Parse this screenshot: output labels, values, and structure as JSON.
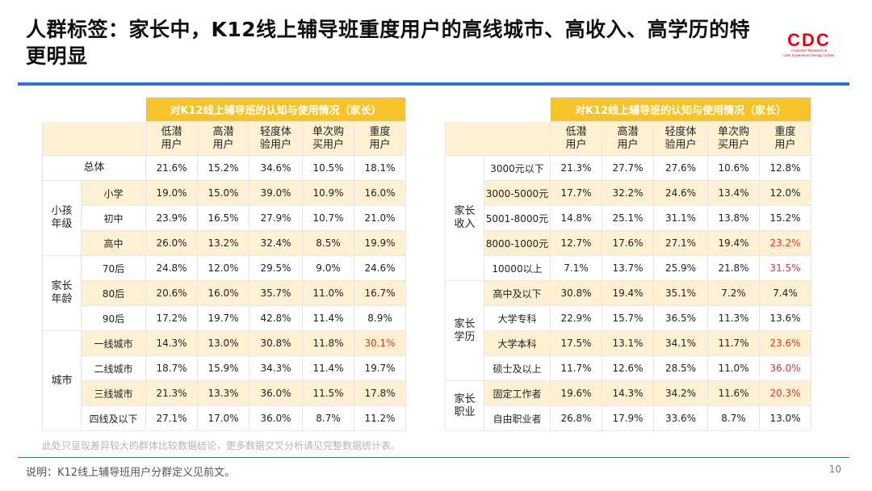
{
  "title": "人群标签：家长中，K12线上辅导班重度用户的高线城市、高收入、高学历的特更明显",
  "logo": {
    "mark": "CDC",
    "sub1": "Customer Research &",
    "sub2": "User Experience Design Center"
  },
  "colors": {
    "accent_blue": "#2f6fd6",
    "header_gold": "#f6c32a",
    "stripe": "#fdf1d2",
    "highlight_red": "#e0342c"
  },
  "columns": [
    "低潜\n用户",
    "高潜\n用户",
    "轻度体\n验用户",
    "单次购\n买用户",
    "重度\n用户"
  ],
  "left_table": {
    "caption": "对K12线上辅导班的认知与使用情况（家长）",
    "total": {
      "label": "总体",
      "values": [
        "21.6%",
        "15.2%",
        "34.6%",
        "10.5%",
        "18.1%"
      ]
    },
    "groups": [
      {
        "label": "小孩\n年级",
        "rows": [
          {
            "label": "小学",
            "values": [
              "19.0%",
              "15.0%",
              "39.0%",
              "10.9%",
              "16.0%"
            ]
          },
          {
            "label": "初中",
            "values": [
              "23.9%",
              "16.5%",
              "27.9%",
              "10.7%",
              "21.0%"
            ]
          },
          {
            "label": "高中",
            "values": [
              "26.0%",
              "13.2%",
              "32.4%",
              "8.5%",
              "19.9%"
            ]
          }
        ]
      },
      {
        "label": "家长\n年龄",
        "rows": [
          {
            "label": "70后",
            "values": [
              "24.8%",
              "12.0%",
              "29.5%",
              "9.0%",
              "24.6%"
            ]
          },
          {
            "label": "80后",
            "values": [
              "20.6%",
              "16.0%",
              "35.7%",
              "11.0%",
              "16.7%"
            ]
          },
          {
            "label": "90后",
            "values": [
              "17.2%",
              "19.7%",
              "42.8%",
              "11.4%",
              "8.9%"
            ]
          }
        ]
      },
      {
        "label": "城市",
        "rows": [
          {
            "label": "一线城市",
            "values": [
              "14.3%",
              "13.0%",
              "30.8%",
              "11.8%",
              "30.1%"
            ],
            "red": [
              4
            ]
          },
          {
            "label": "二线城市",
            "values": [
              "18.7%",
              "15.9%",
              "34.3%",
              "11.4%",
              "19.7%"
            ]
          },
          {
            "label": "三线城市",
            "values": [
              "21.3%",
              "13.3%",
              "36.0%",
              "11.5%",
              "17.8%"
            ]
          },
          {
            "label": "四线及以下",
            "values": [
              "27.1%",
              "17.0%",
              "36.0%",
              "8.7%",
              "11.2%"
            ]
          }
        ]
      }
    ]
  },
  "right_table": {
    "caption": "对K12线上辅导班的认知与使用情况（家长）",
    "groups": [
      {
        "label": "家长\n收入",
        "rows": [
          {
            "label": "3000元以下",
            "values": [
              "21.3%",
              "27.7%",
              "27.6%",
              "10.6%",
              "12.8%"
            ]
          },
          {
            "label": "3000-5000元",
            "values": [
              "17.7%",
              "32.2%",
              "24.6%",
              "13.4%",
              "12.0%"
            ]
          },
          {
            "label": "5001-8000元",
            "values": [
              "14.8%",
              "25.1%",
              "31.1%",
              "13.8%",
              "15.2%"
            ]
          },
          {
            "label": "8000-1000元",
            "values": [
              "12.7%",
              "17.6%",
              "27.1%",
              "19.4%",
              "23.2%"
            ],
            "red": [
              4
            ]
          },
          {
            "label": "10000以上",
            "values": [
              "7.1%",
              "13.7%",
              "25.9%",
              "21.8%",
              "31.5%"
            ],
            "red": [
              4
            ]
          }
        ]
      },
      {
        "label": "家长\n学历",
        "rows": [
          {
            "label": "高中及以下",
            "values": [
              "30.8%",
              "19.4%",
              "35.1%",
              "7.2%",
              "7.4%"
            ]
          },
          {
            "label": "大学专科",
            "values": [
              "22.9%",
              "15.7%",
              "36.5%",
              "11.3%",
              "13.6%"
            ]
          },
          {
            "label": "大学本科",
            "values": [
              "17.5%",
              "13.1%",
              "34.1%",
              "11.7%",
              "23.6%"
            ],
            "red": [
              4
            ]
          },
          {
            "label": "硕士及以上",
            "values": [
              "11.7%",
              "12.6%",
              "28.5%",
              "11.0%",
              "36.0%"
            ],
            "red": [
              4
            ]
          }
        ]
      },
      {
        "label": "家长\n职业",
        "rows": [
          {
            "label": "固定工作者",
            "values": [
              "19.6%",
              "14.3%",
              "34.2%",
              "11.6%",
              "20.3%"
            ],
            "red": [
              4
            ]
          },
          {
            "label": "自由职业者",
            "values": [
              "26.8%",
              "17.9%",
              "33.6%",
              "8.7%",
              "13.0%"
            ]
          }
        ]
      }
    ]
  },
  "note": "此处只呈现差异较大的群体比较数据结论，更多数据交叉分析请见完整数据统计表。",
  "footer": "说明：K12线上辅导班用户分群定义见前文。",
  "page_number": "10"
}
